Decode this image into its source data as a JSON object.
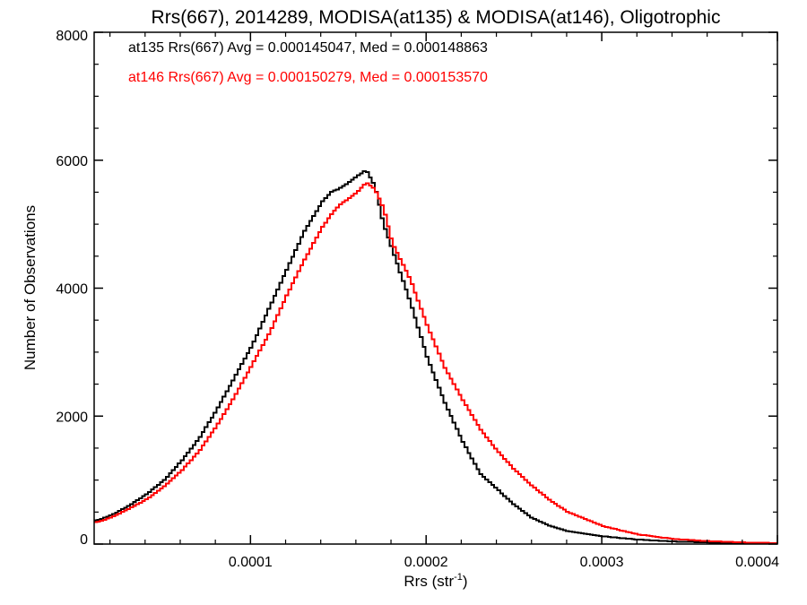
{
  "chart_data": {
    "type": "line",
    "step": true,
    "title": "Rrs(667), 2014289, MODISA(at135) & MODISA(at146), Oligotrophic",
    "xlabel": "Rrs (str",
    "xlabel_sup": "-1",
    "xlabel_close": ")",
    "ylabel": "Number of Observations",
    "xlim": [
      1.1e-05,
      0.0004
    ],
    "ylim": [
      0,
      8000
    ],
    "xticks": [
      0.0001,
      0.0002,
      0.0003,
      0.0004
    ],
    "xtick_labels": [
      "0.0001",
      "0.0002",
      "0.0003",
      "0.0004"
    ],
    "yticks": [
      0,
      2000,
      4000,
      6000,
      8000
    ],
    "ytick_labels": [
      "0",
      "2000",
      "4000",
      "6000",
      "8000"
    ],
    "grid": false,
    "annotations": [
      {
        "text": "at135 Rrs(667) Avg = 0.000145047, Med = 0.000148863",
        "color": "#000000"
      },
      {
        "text": "at146 Rrs(667) Avg = 0.000150279, Med = 0.000153570",
        "color": "#ff0000"
      }
    ],
    "series": [
      {
        "label": "at135",
        "color": "#000000",
        "x": [
          1.2e-05,
          2e-05,
          3e-05,
          4e-05,
          5e-05,
          6e-05,
          7e-05,
          8e-05,
          9e-05,
          0.0001,
          0.00011,
          0.00012,
          0.00013,
          0.00014,
          0.000145,
          0.00015,
          0.000155,
          0.00016,
          0.000165,
          0.00017,
          0.000175,
          0.00018,
          0.00019,
          0.0002,
          0.00021,
          0.00022,
          0.00023,
          0.00024,
          0.00025,
          0.00026,
          0.00027,
          0.00028,
          0.0003,
          0.00032,
          0.00034,
          0.00036,
          0.00038,
          0.0004
        ],
        "values": [
          370,
          450,
          600,
          780,
          1000,
          1300,
          1650,
          2100,
          2600,
          3100,
          3700,
          4300,
          4900,
          5350,
          5500,
          5560,
          5650,
          5750,
          5850,
          5600,
          5000,
          4600,
          3800,
          2900,
          2200,
          1600,
          1100,
          850,
          600,
          400,
          280,
          200,
          120,
          70,
          40,
          25,
          15,
          10
        ]
      },
      {
        "label": "at146",
        "color": "#ff0000",
        "x": [
          1.2e-05,
          2e-05,
          3e-05,
          4e-05,
          5e-05,
          6e-05,
          7e-05,
          8e-05,
          9e-05,
          0.0001,
          0.00011,
          0.00012,
          0.00013,
          0.00014,
          0.000145,
          0.00015,
          0.000155,
          0.00016,
          0.000165,
          0.00017,
          0.000175,
          0.00018,
          0.00019,
          0.0002,
          0.00021,
          0.00022,
          0.00023,
          0.00024,
          0.00025,
          0.00026,
          0.00027,
          0.00028,
          0.0003,
          0.00032,
          0.00034,
          0.00036,
          0.00038,
          0.0004
        ],
        "values": [
          340,
          420,
          550,
          700,
          900,
          1150,
          1450,
          1850,
          2300,
          2800,
          3300,
          3900,
          4450,
          4950,
          5150,
          5300,
          5400,
          5500,
          5650,
          5550,
          5250,
          4700,
          4150,
          3400,
          2750,
          2250,
          1800,
          1450,
          1150,
          900,
          680,
          500,
          280,
          150,
          80,
          45,
          25,
          15
        ]
      }
    ]
  }
}
